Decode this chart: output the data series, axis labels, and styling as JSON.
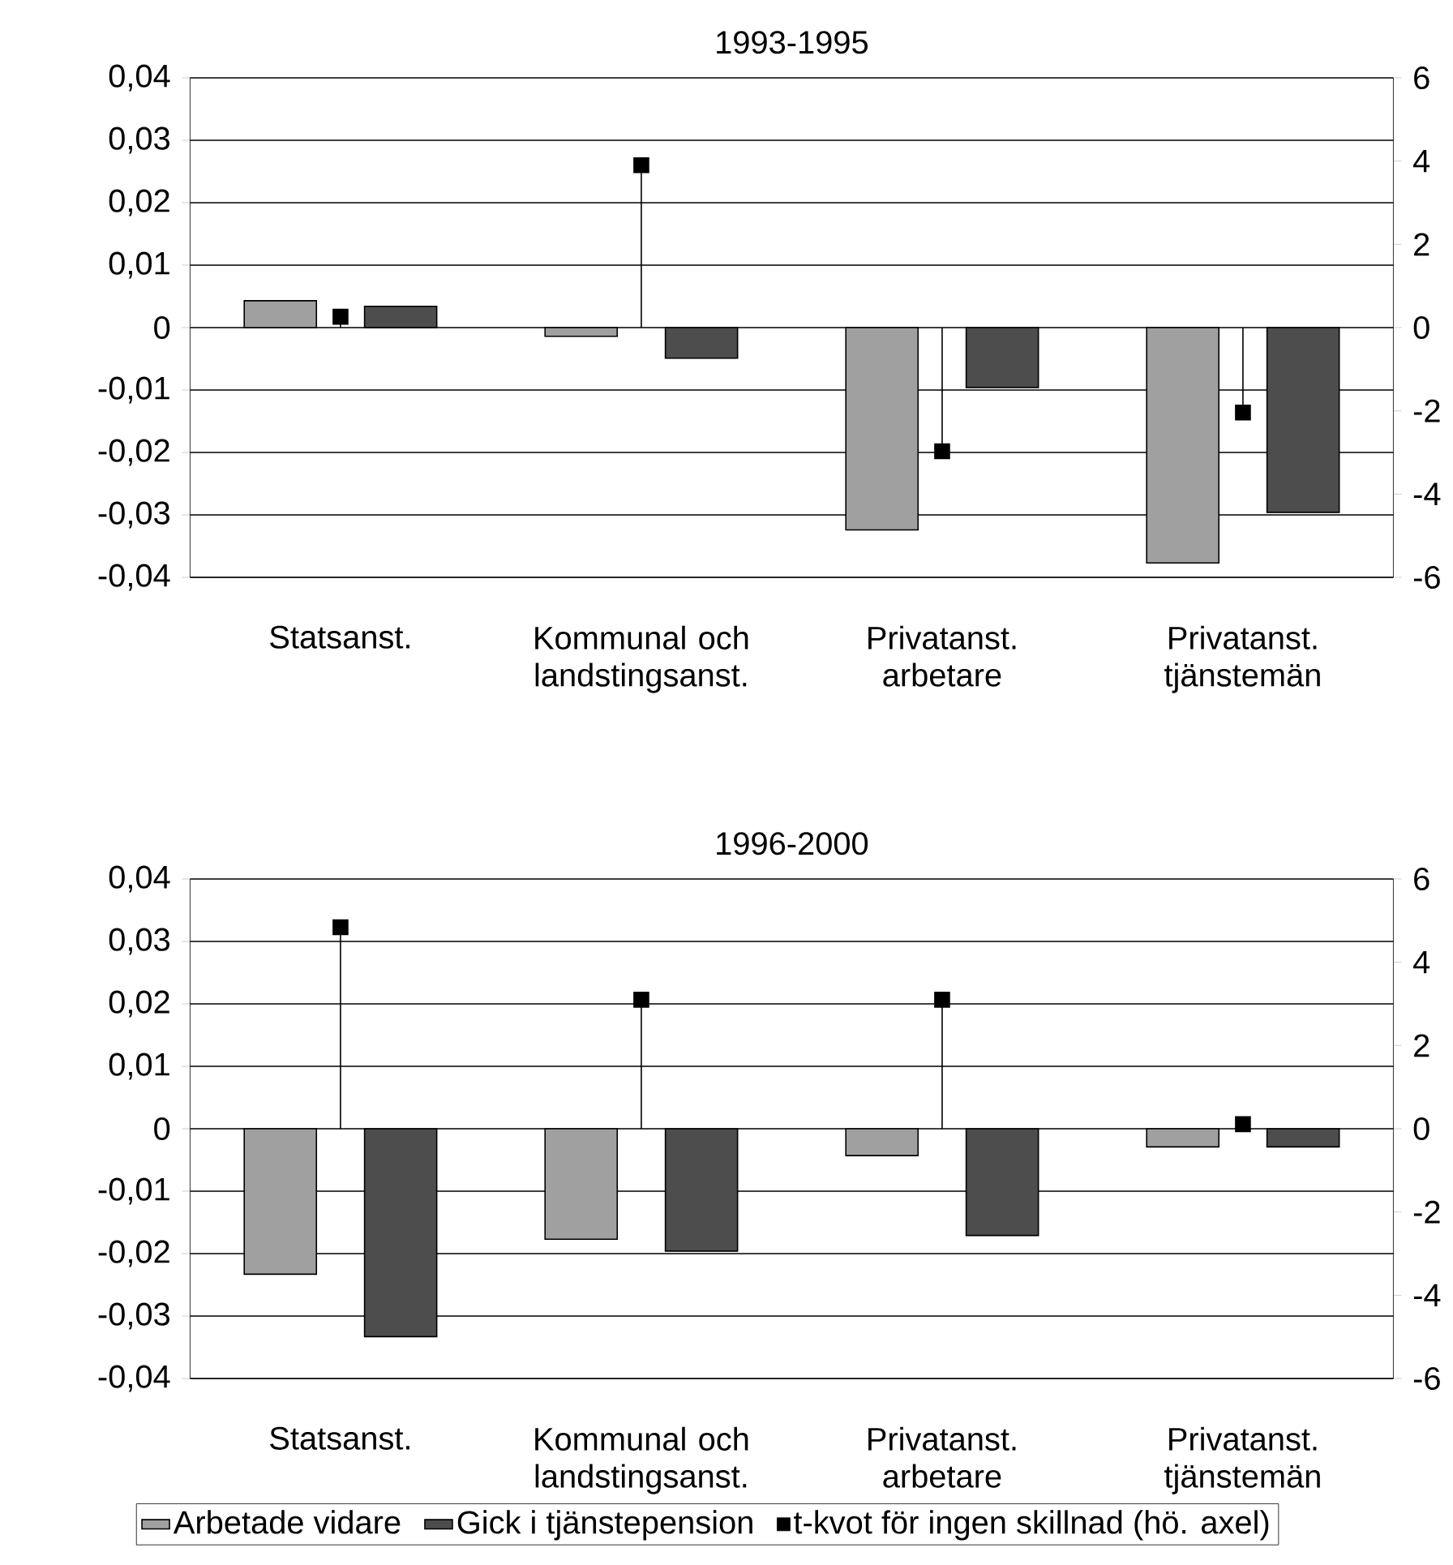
{
  "chart_data": [
    {
      "type": "bar",
      "title": "1993-1995",
      "categories": [
        "Statsanst.",
        "Kommunal och landstingsanst.",
        "Privatanst. arbetare",
        "Privatanst. tjänstemän"
      ],
      "series": [
        {
          "color": "#a0a0a0",
          "values": [
            0.0043,
            -0.0014,
            -0.0324,
            -0.0377
          ]
        },
        {
          "color": "#4d4d4d",
          "values": [
            0.0034,
            -0.0049,
            -0.0096,
            -0.0296
          ]
        },
        {
          "type": "lollipop",
          "axis": "y2",
          "color": "#000000",
          "marker": "square",
          "values": [
            0.26,
            3.9,
            -2.97,
            -2.04
          ]
        }
      ],
      "ylim": [
        -0.04,
        0.04
      ],
      "yticks": [
        {
          "value": -0.04,
          "label": "-0,04"
        },
        {
          "value": -0.03,
          "label": "-0,03"
        },
        {
          "value": -0.02,
          "label": "-0,02"
        },
        {
          "value": -0.01,
          "label": "-0,01"
        },
        0,
        {
          "value": 0.01,
          "label": "0,01"
        },
        {
          "value": 0.02,
          "label": "0,02"
        },
        {
          "value": 0.03,
          "label": "0,03"
        },
        {
          "value": 0.04,
          "label": "0,04"
        }
      ],
      "y2lim": [
        -6,
        6
      ],
      "y2ticks": [
        -6,
        -4,
        -2,
        0,
        2,
        4,
        6
      ],
      "grid": "y",
      "legend": false
    },
    {
      "type": "bar",
      "title": "1996-2000",
      "categories": [
        "Statsanst.",
        "Kommunal och landstingsanst.",
        "Privatanst. arbetare",
        "Privatanst. tjänstemän"
      ],
      "series": [
        {
          "name": "Arbetade vidare",
          "color": "#a0a0a0",
          "values": [
            -0.0233,
            -0.0177,
            -0.0043,
            -0.0029
          ]
        },
        {
          "name": "Gick i  tjänstepension",
          "color": "#4d4d4d",
          "values": [
            -0.0333,
            -0.0196,
            -0.0171,
            -0.0029
          ]
        },
        {
          "name": "t-kvot för ingen skillnad (hö. axel)",
          "type": "lollipop",
          "axis": "y2",
          "color": "#000000",
          "marker": "square",
          "values": [
            4.84,
            3.1,
            3.1,
            0.11
          ]
        }
      ],
      "ylim": [
        -0.04,
        0.04
      ],
      "yticks": [
        {
          "value": -0.04,
          "label": "-0,04"
        },
        {
          "value": -0.03,
          "label": "-0,03"
        },
        {
          "value": -0.02,
          "label": "-0,02"
        },
        {
          "value": -0.01,
          "label": "-0,01"
        },
        0,
        {
          "value": 0.01,
          "label": "0,01"
        },
        {
          "value": 0.02,
          "label": "0,02"
        },
        {
          "value": 0.03,
          "label": "0,03"
        },
        {
          "value": 0.04,
          "label": "0,04"
        }
      ],
      "y2lim": [
        -6,
        6
      ],
      "y2ticks": [
        -6,
        -4,
        -2,
        0,
        2,
        4,
        6
      ],
      "grid": "y",
      "legend": "bottom"
    }
  ]
}
